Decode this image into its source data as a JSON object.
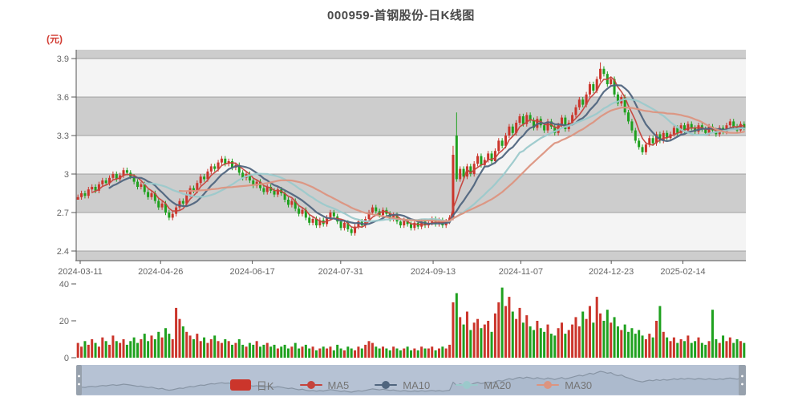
{
  "header": {
    "title": "000959-首钢股份-日K线图"
  },
  "price_axis": {
    "unit": "(元)",
    "labels": [
      "3.9",
      "3.6",
      "3.3",
      "3",
      "2.7",
      "2.4"
    ],
    "values": [
      3.9,
      3.6,
      3.3,
      3.0,
      2.7,
      2.4
    ]
  },
  "volume_axis": {
    "labels": [
      "40",
      "20",
      "0"
    ],
    "values": [
      40,
      20,
      0
    ]
  },
  "x_axis": {
    "labels": [
      {
        "text": "2024-03-11",
        "pos": 0.006
      },
      {
        "text": "2024-04-26",
        "pos": 0.126
      },
      {
        "text": "2024-06-17",
        "pos": 0.263
      },
      {
        "text": "2024-07-31",
        "pos": 0.395
      },
      {
        "text": "2024-09-13",
        "pos": 0.533
      },
      {
        "text": "2024-11-07",
        "pos": 0.664
      },
      {
        "text": "2024-12-23",
        "pos": 0.799
      },
      {
        "text": "2025-02-14",
        "pos": 0.906
      }
    ]
  },
  "legend": {
    "items": [
      {
        "label": "日K",
        "color": "#cb352b",
        "type": "rect"
      },
      {
        "label": "MA5",
        "color": "#c5433c",
        "type": "line"
      },
      {
        "label": "MA10",
        "color": "#50657e",
        "type": "line"
      },
      {
        "label": "MA20",
        "color": "#9bc9cb",
        "type": "line"
      },
      {
        "label": "MA30",
        "color": "#dc9480",
        "type": "line"
      }
    ]
  },
  "colors": {
    "up": "#cb352b",
    "down": "#1fa11f",
    "band_light": "#f4f4f4",
    "band_gray": "#cdcdcd",
    "grid": "#9a9a9a",
    "axis": "#555555",
    "tick_text": "#666666",
    "title_text": "#4a4a4a",
    "unit_text": "#d23c32",
    "ma5": "#c5433c",
    "ma10": "#50657e",
    "ma20": "#9bc9cb",
    "ma30": "#dc9480",
    "navigator_bg": "#b6c2d4",
    "navigator_line": "#8794a4",
    "navigator_fill": "#aab8cb",
    "navigator_handle": "#97a1ad"
  },
  "chart_data": {
    "type": "candlestick",
    "title": "000959-首钢股份-日K线图",
    "ylabel": "(元)",
    "ylim": [
      2.33,
      3.97
    ],
    "y_ticks": [
      2.4,
      2.7,
      3.0,
      3.3,
      3.6,
      3.9
    ],
    "volume_ylim": [
      0,
      44
    ],
    "volume_ticks": [
      0,
      20,
      40
    ],
    "x_tick_labels": [
      "2024-03-11",
      "2024-04-26",
      "2024-06-17",
      "2024-07-31",
      "2024-09-13",
      "2024-11-07",
      "2024-12-23",
      "2025-02-14"
    ],
    "moving_averages": [
      5,
      10,
      20,
      30
    ],
    "legend_series": [
      "日K",
      "MA5",
      "MA10",
      "MA20",
      "MA30"
    ],
    "closes": [
      2.82,
      2.85,
      2.83,
      2.88,
      2.9,
      2.87,
      2.92,
      2.95,
      2.93,
      2.97,
      3.0,
      2.96,
      2.99,
      3.03,
      3.01,
      2.98,
      2.94,
      2.9,
      2.92,
      2.86,
      2.82,
      2.85,
      2.79,
      2.74,
      2.77,
      2.7,
      2.66,
      2.69,
      2.74,
      2.79,
      2.77,
      2.84,
      2.89,
      2.87,
      2.93,
      2.98,
      2.96,
      3.02,
      3.06,
      3.04,
      3.09,
      3.12,
      3.08,
      3.1,
      3.05,
      3.07,
      3.01,
      2.97,
      3.0,
      2.95,
      2.91,
      2.94,
      2.89,
      2.86,
      2.9,
      2.87,
      2.84,
      2.88,
      2.85,
      2.8,
      2.76,
      2.79,
      2.73,
      2.69,
      2.72,
      2.66,
      2.62,
      2.65,
      2.6,
      2.64,
      2.61,
      2.66,
      2.7,
      2.67,
      2.63,
      2.58,
      2.62,
      2.57,
      2.54,
      2.59,
      2.63,
      2.6,
      2.65,
      2.7,
      2.74,
      2.71,
      2.68,
      2.72,
      2.69,
      2.65,
      2.68,
      2.63,
      2.6,
      2.64,
      2.61,
      2.58,
      2.62,
      2.59,
      2.63,
      2.6,
      2.62,
      2.65,
      2.61,
      2.64,
      2.6,
      2.63,
      2.66,
      3.15,
      2.96,
      3.04,
      2.98,
      3.06,
      3.0,
      3.08,
      3.14,
      3.07,
      3.11,
      3.16,
      3.1,
      3.18,
      3.26,
      3.22,
      3.3,
      3.37,
      3.32,
      3.4,
      3.45,
      3.39,
      3.46,
      3.42,
      3.36,
      3.43,
      3.38,
      3.34,
      3.41,
      3.37,
      3.32,
      3.38,
      3.44,
      3.35,
      3.4,
      3.46,
      3.52,
      3.58,
      3.54,
      3.62,
      3.7,
      3.65,
      3.74,
      3.82,
      3.78,
      3.7,
      3.74,
      3.62,
      3.55,
      3.6,
      3.48,
      3.41,
      3.34,
      3.26,
      3.21,
      3.17,
      3.23,
      3.28,
      3.24,
      3.31,
      3.26,
      3.32,
      3.28,
      3.31,
      3.36,
      3.32,
      3.38,
      3.34,
      3.39,
      3.36,
      3.33,
      3.38,
      3.35,
      3.32,
      3.37,
      3.34,
      3.31,
      3.36,
      3.33,
      3.38,
      3.41,
      3.37,
      3.34,
      3.39,
      3.36
    ],
    "volumes": [
      8,
      6,
      9,
      7,
      10,
      8,
      6,
      11,
      9,
      7,
      12,
      9,
      8,
      10,
      7,
      9,
      11,
      8,
      10,
      13,
      9,
      12,
      10,
      14,
      11,
      16,
      13,
      10,
      27,
      21,
      17,
      14,
      12,
      10,
      13,
      9,
      11,
      8,
      10,
      12,
      9,
      8,
      10,
      9,
      7,
      8,
      10,
      7,
      6,
      8,
      7,
      9,
      6,
      7,
      8,
      6,
      7,
      5,
      6,
      7,
      5,
      6,
      8,
      5,
      6,
      7,
      5,
      6,
      4,
      5,
      6,
      5,
      6,
      4,
      7,
      5,
      4,
      6,
      5,
      4,
      6,
      5,
      7,
      9,
      8,
      6,
      5,
      6,
      5,
      4,
      6,
      5,
      4,
      5,
      6,
      4,
      5,
      4,
      6,
      5,
      5,
      6,
      4,
      5,
      6,
      5,
      7,
      30,
      35,
      22,
      18,
      25,
      15,
      19,
      21,
      16,
      18,
      20,
      14,
      24,
      30,
      38,
      28,
      33,
      25,
      21,
      27,
      19,
      23,
      17,
      15,
      20,
      16,
      14,
      18,
      13,
      12,
      16,
      19,
      13,
      15,
      18,
      22,
      17,
      25,
      21,
      28,
      19,
      33,
      24,
      20,
      26,
      19,
      22,
      17,
      15,
      18,
      14,
      16,
      13,
      15,
      12,
      10,
      13,
      11,
      20,
      28,
      14,
      11,
      9,
      11,
      8,
      10,
      9,
      12,
      8,
      9,
      11,
      8,
      7,
      9,
      26,
      10,
      8,
      12,
      9,
      11,
      8,
      10,
      9,
      8
    ],
    "candle_overrides": {
      "0": {
        "o": 2.8
      },
      "107": {
        "o": 2.66,
        "h": 3.22,
        "l": 2.64
      },
      "108": {
        "o": 3.3,
        "h": 3.48
      },
      "149": {
        "h": 3.87
      },
      "150": {
        "h": 3.84
      }
    }
  }
}
